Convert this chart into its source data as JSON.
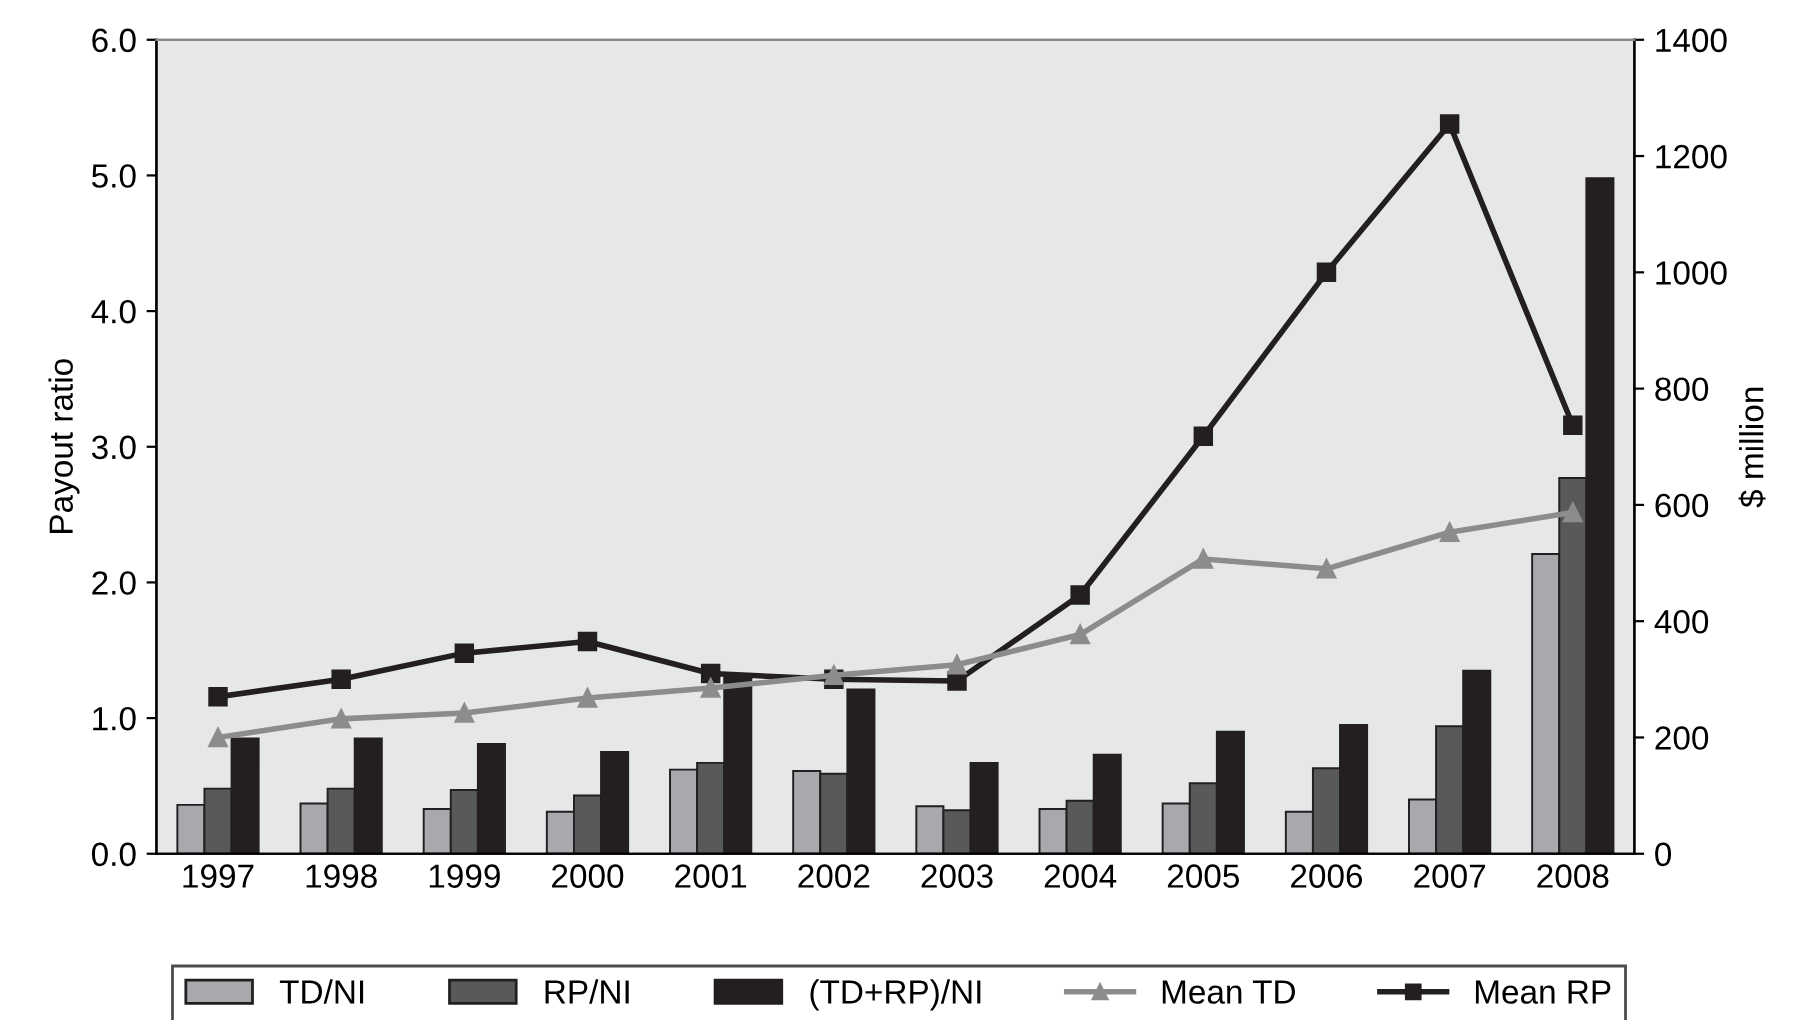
{
  "chart_data": {
    "type": "bar",
    "ylabel": "Payout ratio",
    "y2label": "$ million",
    "categories": [
      "1997",
      "1998",
      "1999",
      "2000",
      "2001",
      "2002",
      "2003",
      "2004",
      "2005",
      "2006",
      "2007",
      "2008"
    ],
    "series": [
      {
        "name": "TD/NI",
        "color": "#a7a9ac",
        "values": [
          0.36,
          0.37,
          0.33,
          0.31,
          0.62,
          0.61,
          0.35,
          0.33,
          0.37,
          0.31,
          0.4,
          2.21
        ]
      },
      {
        "name": "RP/NI",
        "color": "#58595b",
        "values": [
          0.48,
          0.48,
          0.47,
          0.43,
          0.67,
          0.59,
          0.32,
          0.39,
          0.52,
          0.63,
          0.94,
          2.77
        ]
      },
      {
        "name": "(TD+RP)/NI",
        "color": "#231f20",
        "values": [
          0.85,
          0.85,
          0.81,
          0.75,
          1.32,
          1.21,
          0.67,
          0.73,
          0.9,
          0.95,
          1.35,
          4.98
        ]
      },
      {
        "name": "Mean TD",
        "type": "line",
        "axis": "y2",
        "marker": "triangle",
        "color": "#8c8c8c",
        "values": [
          200,
          232,
          242,
          268,
          285,
          307,
          325,
          377,
          507,
          490,
          553,
          587
        ]
      },
      {
        "name": "Mean RP",
        "type": "line",
        "axis": "y2",
        "marker": "square",
        "color": "#231f20",
        "values": [
          270,
          300,
          345,
          365,
          310,
          300,
          297,
          445,
          718,
          1000,
          1255,
          737
        ]
      }
    ],
    "ylim": [
      0,
      6.0
    ],
    "yticks": [
      {
        "value": 0,
        "label": "0.0"
      },
      {
        "value": 1,
        "label": "1.0"
      },
      {
        "value": 2,
        "label": "2.0"
      },
      {
        "value": 3,
        "label": "3.0"
      },
      {
        "value": 4,
        "label": "4.0"
      },
      {
        "value": 5,
        "label": "5.0"
      },
      {
        "value": 6,
        "label": "6.0"
      }
    ],
    "y2lim": [
      0,
      1400
    ],
    "y2ticks": [
      0,
      200,
      400,
      600,
      800,
      1000,
      1200,
      1400
    ],
    "grid": false,
    "legend": "bottom"
  }
}
